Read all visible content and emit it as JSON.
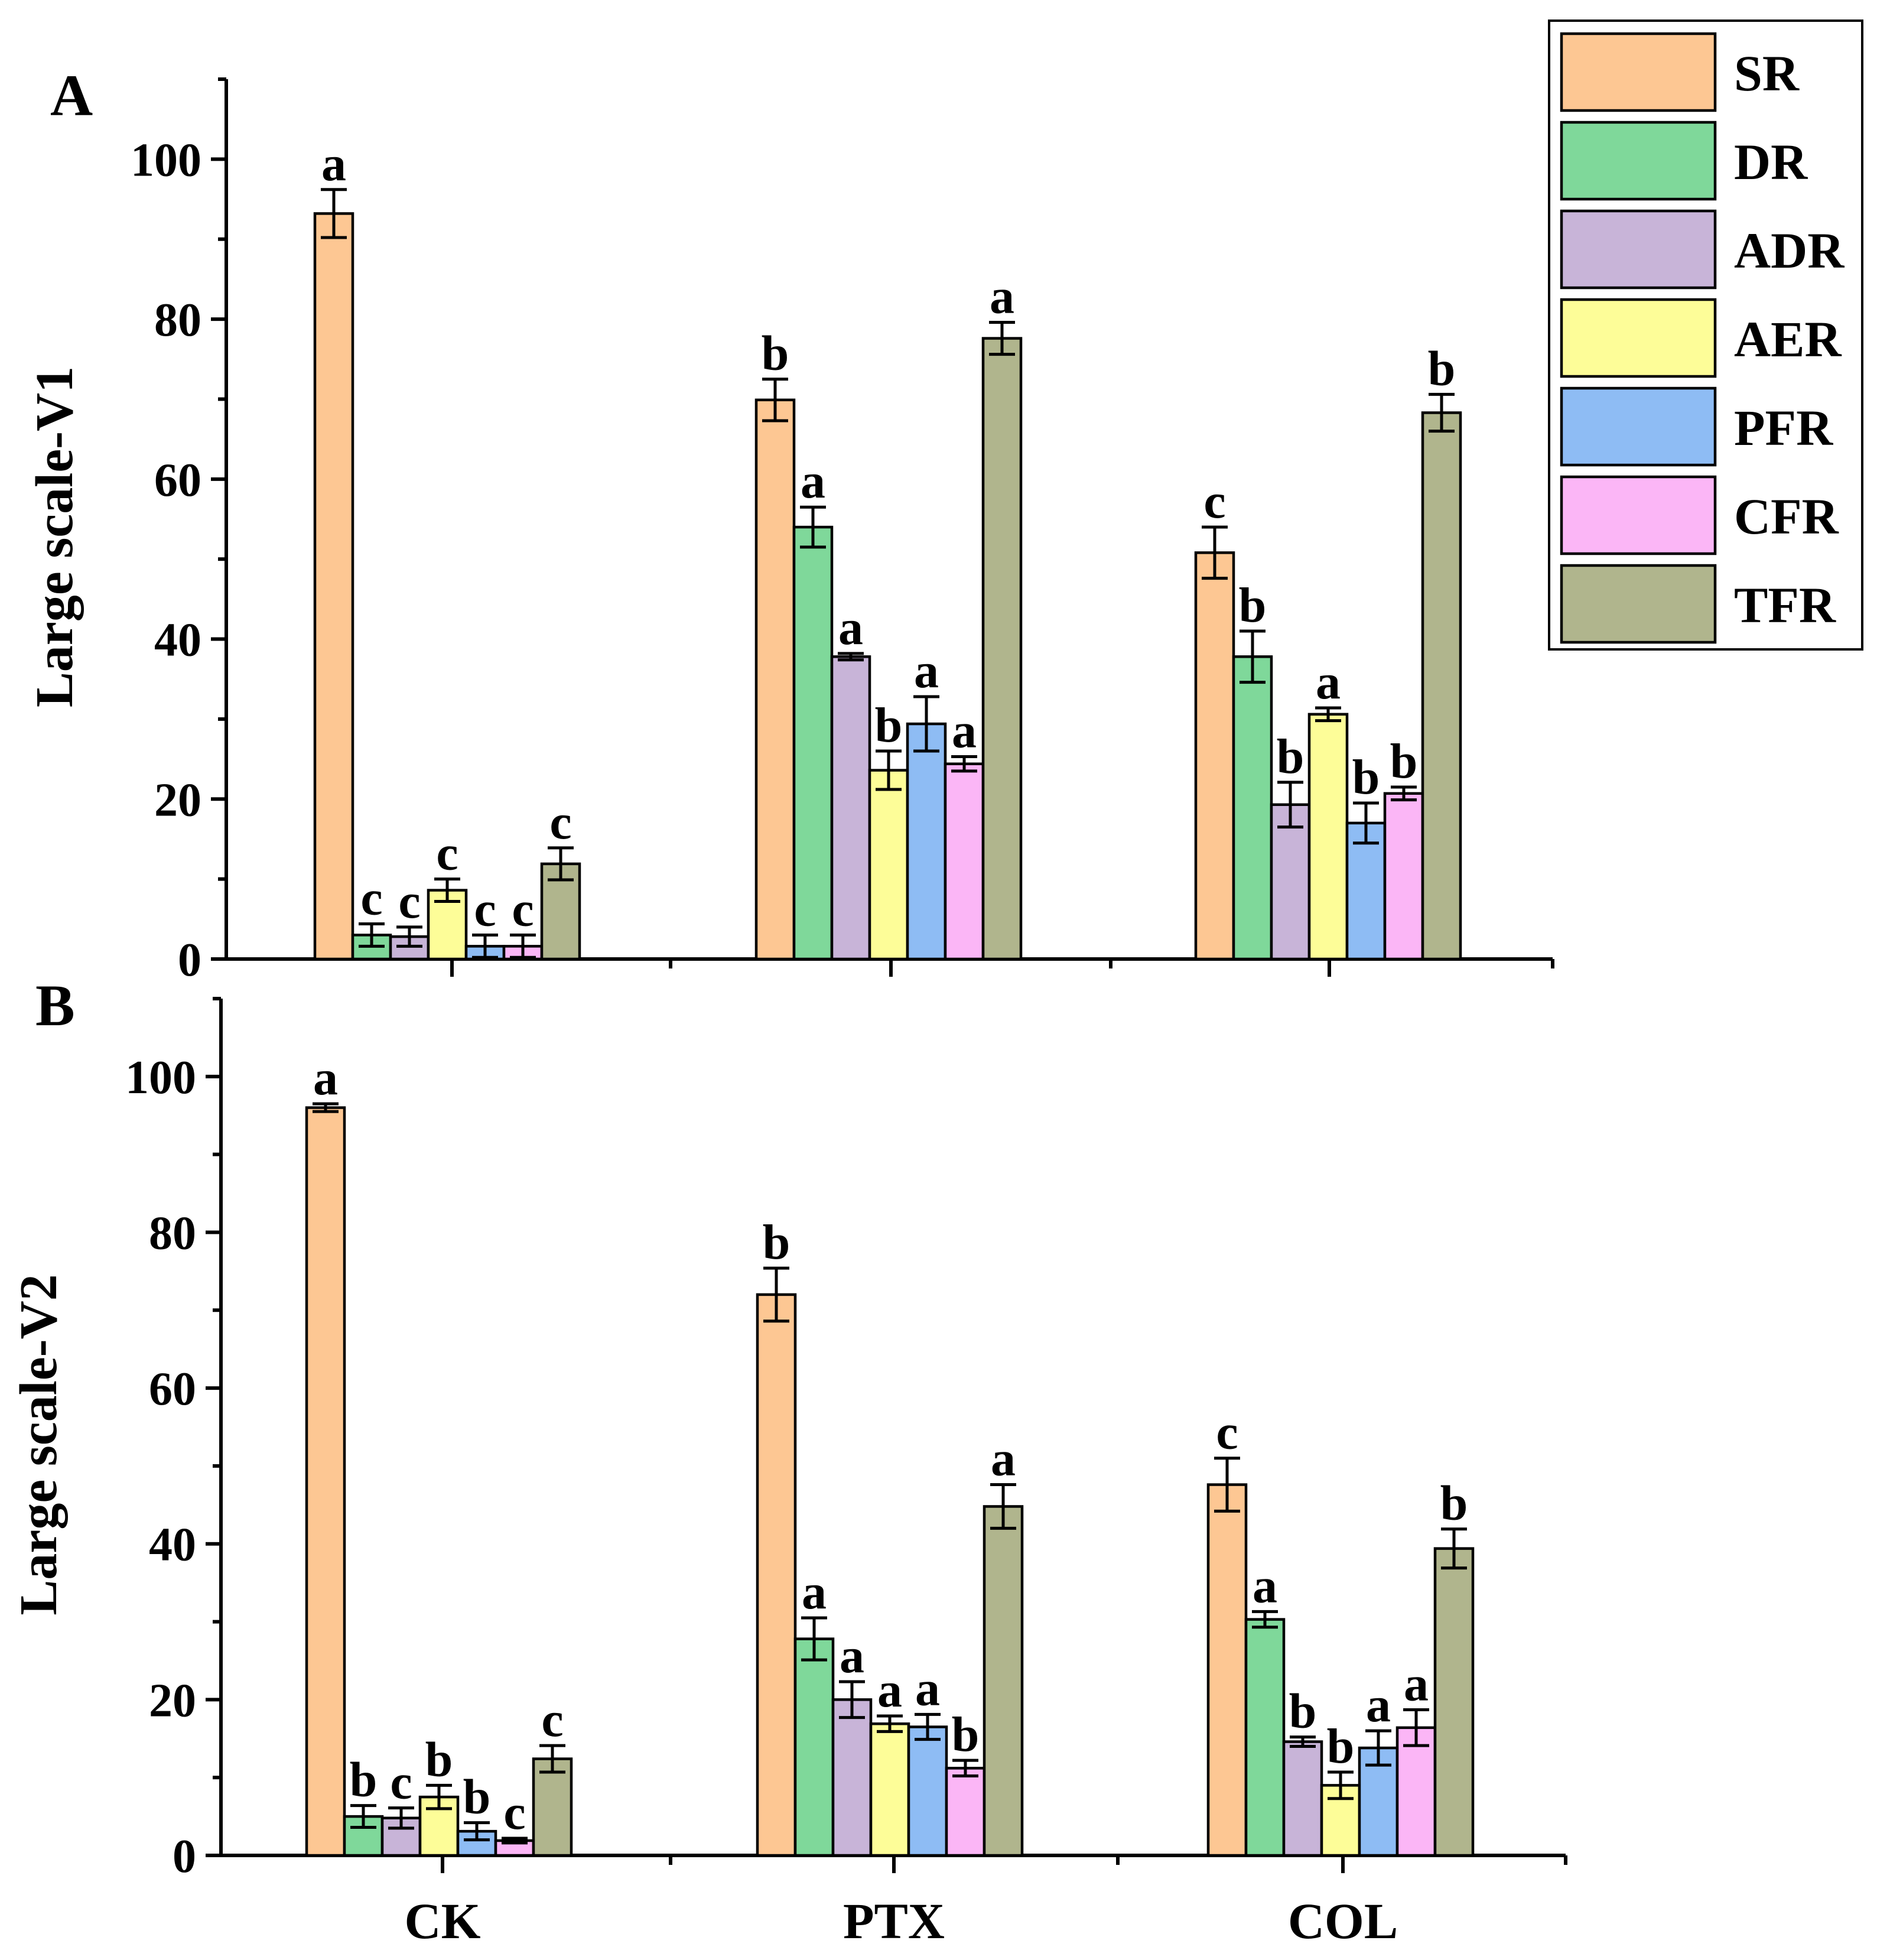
{
  "chart_data": [
    {
      "type": "bar",
      "panel_label": "A",
      "ylabel": "Large scale-V1",
      "xlabel": "",
      "ylim": [
        0,
        110
      ],
      "yticks": [
        0,
        20,
        40,
        60,
        80,
        100
      ],
      "categories": [
        "CK",
        "PTX",
        "COL"
      ],
      "series": [
        {
          "name": "SR",
          "values": [
            93.2,
            69.9,
            50.8
          ],
          "errors": [
            3.0,
            2.6,
            3.2
          ],
          "letters": [
            "a",
            "b",
            "c"
          ]
        },
        {
          "name": "DR",
          "values": [
            3.0,
            54.0,
            37.8
          ],
          "errors": [
            1.4,
            2.5,
            3.2
          ],
          "letters": [
            "c",
            "a",
            "b"
          ]
        },
        {
          "name": "ADR",
          "values": [
            2.8,
            37.8,
            19.3
          ],
          "errors": [
            1.2,
            0.4,
            2.8
          ],
          "letters": [
            "c",
            "a",
            "b"
          ]
        },
        {
          "name": "AER",
          "values": [
            8.6,
            23.6,
            30.6
          ],
          "errors": [
            1.4,
            2.4,
            0.8
          ],
          "letters": [
            "c",
            "b",
            "a"
          ]
        },
        {
          "name": "PFR",
          "values": [
            1.6,
            29.4,
            17.0
          ],
          "errors": [
            1.4,
            3.4,
            2.5
          ],
          "letters": [
            "c",
            "a",
            "b"
          ]
        },
        {
          "name": "CFR",
          "values": [
            1.6,
            24.4,
            20.7
          ],
          "errors": [
            1.4,
            0.9,
            0.8
          ],
          "letters": [
            "c",
            "a",
            "b"
          ]
        },
        {
          "name": "TFR",
          "values": [
            11.9,
            77.6,
            68.3
          ],
          "errors": [
            2.0,
            2.0,
            2.3
          ],
          "letters": [
            "c",
            "a",
            "b"
          ]
        }
      ]
    },
    {
      "type": "bar",
      "panel_label": "B",
      "ylabel": "Large scale-V2",
      "xlabel": "",
      "ylim": [
        0,
        110
      ],
      "yticks": [
        0,
        20,
        40,
        60,
        80,
        100
      ],
      "categories": [
        "CK",
        "PTX",
        "COL"
      ],
      "series": [
        {
          "name": "SR",
          "values": [
            96.0,
            72.0,
            47.6
          ],
          "errors": [
            0.5,
            3.4,
            3.4
          ],
          "letters": [
            "a",
            "b",
            "c"
          ]
        },
        {
          "name": "DR",
          "values": [
            5.0,
            27.8,
            30.3
          ],
          "errors": [
            1.4,
            2.7,
            1.0
          ],
          "letters": [
            "b",
            "a",
            "a"
          ]
        },
        {
          "name": "ADR",
          "values": [
            4.8,
            20.0,
            14.6
          ],
          "errors": [
            1.3,
            2.3,
            0.6
          ],
          "letters": [
            "c",
            "a",
            "b"
          ]
        },
        {
          "name": "AER",
          "values": [
            7.5,
            16.9,
            9.0
          ],
          "errors": [
            1.5,
            1.0,
            1.7
          ],
          "letters": [
            "b",
            "a",
            "b"
          ]
        },
        {
          "name": "PFR",
          "values": [
            3.1,
            16.5,
            13.8
          ],
          "errors": [
            1.1,
            1.6,
            2.2
          ],
          "letters": [
            "b",
            "a",
            "a"
          ]
        },
        {
          "name": "CFR",
          "values": [
            1.9,
            11.2,
            16.4
          ],
          "errors": [
            0.3,
            1.0,
            2.3
          ],
          "letters": [
            "c",
            "b",
            "a"
          ]
        },
        {
          "name": "TFR",
          "values": [
            12.4,
            44.8,
            39.4
          ],
          "errors": [
            1.7,
            2.8,
            2.5
          ],
          "letters": [
            "c",
            "a",
            "b"
          ]
        }
      ]
    }
  ],
  "legend": {
    "placement": "top-right",
    "items": [
      {
        "label": "SR",
        "color": "#FDC793"
      },
      {
        "label": "DR",
        "color": "#7FD89A"
      },
      {
        "label": "ADR",
        "color": "#C8B4D8"
      },
      {
        "label": "AER",
        "color": "#FDFD98"
      },
      {
        "label": "PFR",
        "color": "#8EBCF4"
      },
      {
        "label": "CFR",
        "color": "#FBB6F6"
      },
      {
        "label": "TFR",
        "color": "#B0B58D"
      }
    ]
  }
}
